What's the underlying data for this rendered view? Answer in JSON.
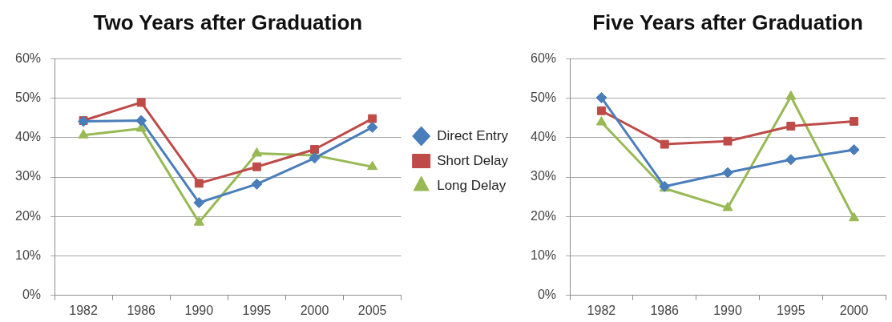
{
  "chart_data": [
    {
      "type": "line",
      "title": "Two Years after Graduation",
      "categories": [
        "1982",
        "1986",
        "1990",
        "1995",
        "2000",
        "2005"
      ],
      "series": [
        {
          "name": "Direct Entry",
          "color": "#4a7ebb",
          "marker": "diamond",
          "values": [
            44.1,
            44.3,
            23.5,
            28.2,
            34.8,
            42.6
          ]
        },
        {
          "name": "Short Delay",
          "color": "#be4b48",
          "marker": "square",
          "values": [
            44.3,
            48.9,
            28.4,
            32.6,
            37.0,
            44.8
          ]
        },
        {
          "name": "Long Delay",
          "color": "#98b954",
          "marker": "triangle",
          "values": [
            40.6,
            42.3,
            18.5,
            36.0,
            35.5,
            32.6
          ]
        }
      ],
      "ylim": [
        0,
        60
      ],
      "yticks": [
        {
          "value": 0,
          "label": "0%"
        },
        {
          "value": 10,
          "label": "10%"
        },
        {
          "value": 20,
          "label": "20%"
        },
        {
          "value": 30,
          "label": "30%"
        },
        {
          "value": 40,
          "label": "40%"
        },
        {
          "value": 50,
          "label": "50%"
        },
        {
          "value": 60,
          "label": "60%"
        }
      ],
      "grid": "y",
      "legend": "right",
      "line_style": "solid"
    },
    {
      "type": "line",
      "title": "Five Years after Graduation",
      "categories": [
        "1982",
        "1986",
        "1990",
        "1995",
        "2000"
      ],
      "series": [
        {
          "color": "#4a7ebb",
          "marker": "diamond",
          "values": [
            50.1,
            27.6,
            31.1,
            34.4,
            36.9
          ]
        },
        {
          "color": "#be4b48",
          "marker": "square",
          "values": [
            46.8,
            38.3,
            39.1,
            42.9,
            44.1
          ]
        },
        {
          "color": "#98b954",
          "marker": "triangle",
          "values": [
            43.9,
            27.1,
            22.2,
            50.4,
            19.6
          ]
        }
      ],
      "ylim": [
        0,
        60
      ],
      "yticks": [
        {
          "value": 0,
          "label": "0%"
        },
        {
          "value": 10,
          "label": "10%"
        },
        {
          "value": 20,
          "label": "20%"
        },
        {
          "value": 30,
          "label": "30%"
        },
        {
          "value": 40,
          "label": "40%"
        },
        {
          "value": 50,
          "label": "50%"
        },
        {
          "value": 60,
          "label": "60%"
        }
      ],
      "grid": "y",
      "line_style": "solid"
    }
  ]
}
